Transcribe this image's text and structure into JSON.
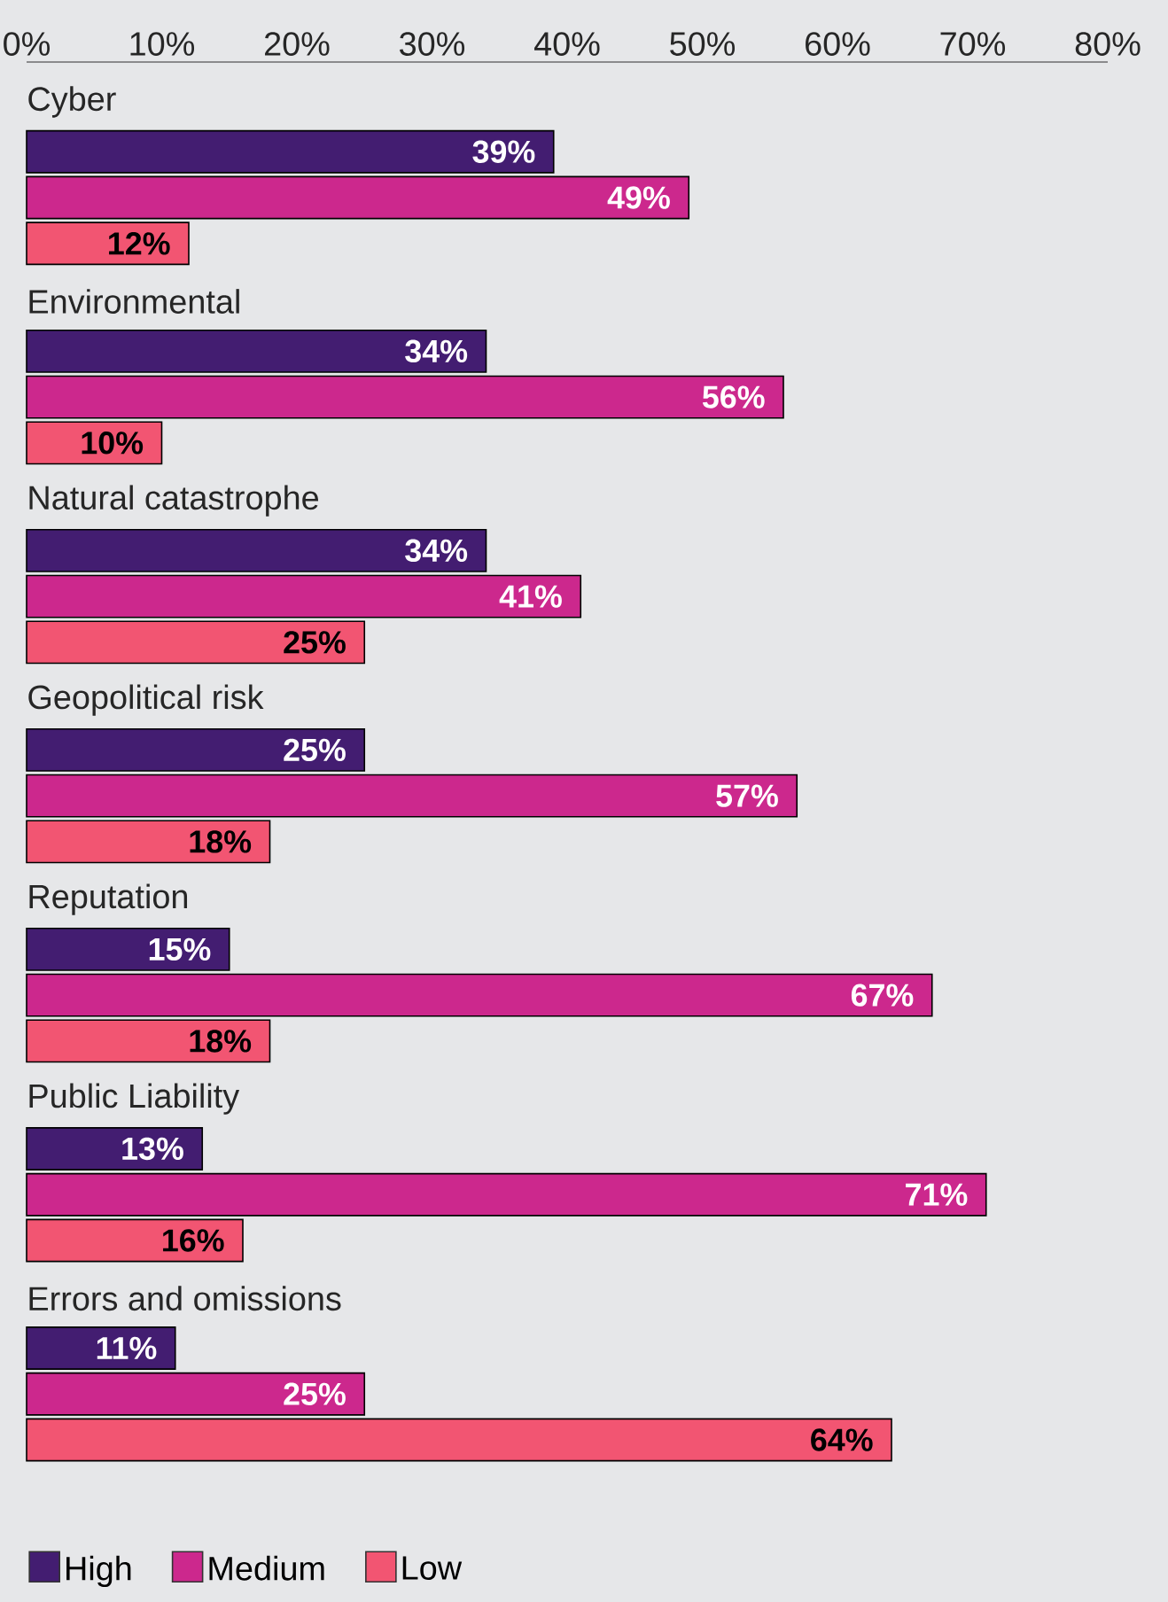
{
  "chart_data": {
    "type": "bar",
    "orientation": "horizontal",
    "categories": [
      "Cyber",
      "Environmental",
      "Natural catastrophe",
      "Geopolitical risk",
      "Reputation",
      "Public Liability",
      "Errors and omissions"
    ],
    "series": [
      {
        "name": "High",
        "color": "#431d71",
        "values": [
          39,
          34,
          34,
          25,
          15,
          13,
          11
        ],
        "value_labels": [
          "39%",
          "34%",
          "34%",
          "25%",
          "15%",
          "13%",
          "11%"
        ]
      },
      {
        "name": "Medium",
        "color": "#cc288d",
        "values": [
          49,
          56,
          41,
          57,
          67,
          71,
          25
        ],
        "value_labels": [
          "49%",
          "56%",
          "41%",
          "57%",
          "67%",
          "71%",
          "25%"
        ]
      },
      {
        "name": "Low",
        "color": "#f25572",
        "values": [
          12,
          10,
          25,
          18,
          18,
          16,
          64
        ],
        "value_labels": [
          "12%",
          "10%",
          "25%",
          "18%",
          "18%",
          "16%",
          "64%"
        ]
      }
    ],
    "xlim": [
      0,
      80
    ],
    "xticks": [
      {
        "value": 0,
        "label": "0%"
      },
      {
        "value": 10,
        "label": "10%"
      },
      {
        "value": 20,
        "label": "20%"
      },
      {
        "value": 30,
        "label": "30%"
      },
      {
        "value": 40,
        "label": "40%"
      },
      {
        "value": 50,
        "label": "50%"
      },
      {
        "value": 60,
        "label": "60%"
      },
      {
        "value": 70,
        "label": "70%"
      },
      {
        "value": 80,
        "label": "80%"
      }
    ],
    "grid": false,
    "legend": "bottom"
  }
}
